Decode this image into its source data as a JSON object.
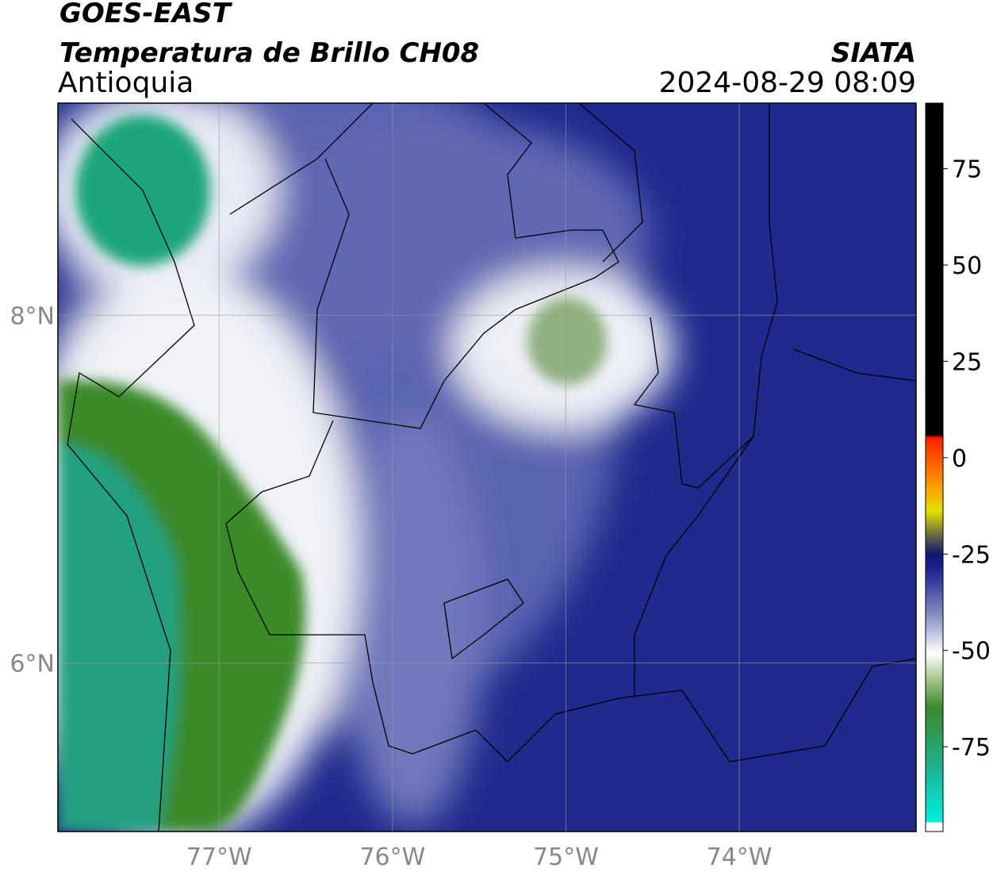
{
  "header": {
    "satellite": "GOES-EAST",
    "product": "Temperatura de Brillo CH08",
    "region": "Antioquia",
    "source": "SIATA",
    "datetime": "2024-08-29 08:09"
  },
  "map": {
    "xlim": [
      -77.93,
      -72.98
    ],
    "ylim": [
      5.03,
      9.22
    ],
    "xticks": [
      {
        "value": -77,
        "label": "77°W"
      },
      {
        "value": -76,
        "label": "76°W"
      },
      {
        "value": -75,
        "label": "75°W"
      },
      {
        "value": -74,
        "label": "74°W"
      }
    ],
    "yticks": [
      {
        "value": 8,
        "label": "8°N"
      },
      {
        "value": 6,
        "label": "6°N"
      }
    ],
    "grid": true
  },
  "colorbar": {
    "lim": [
      -97,
      92
    ],
    "ticks": [
      75,
      50,
      25,
      0,
      -25,
      -50,
      -75
    ]
  }
}
